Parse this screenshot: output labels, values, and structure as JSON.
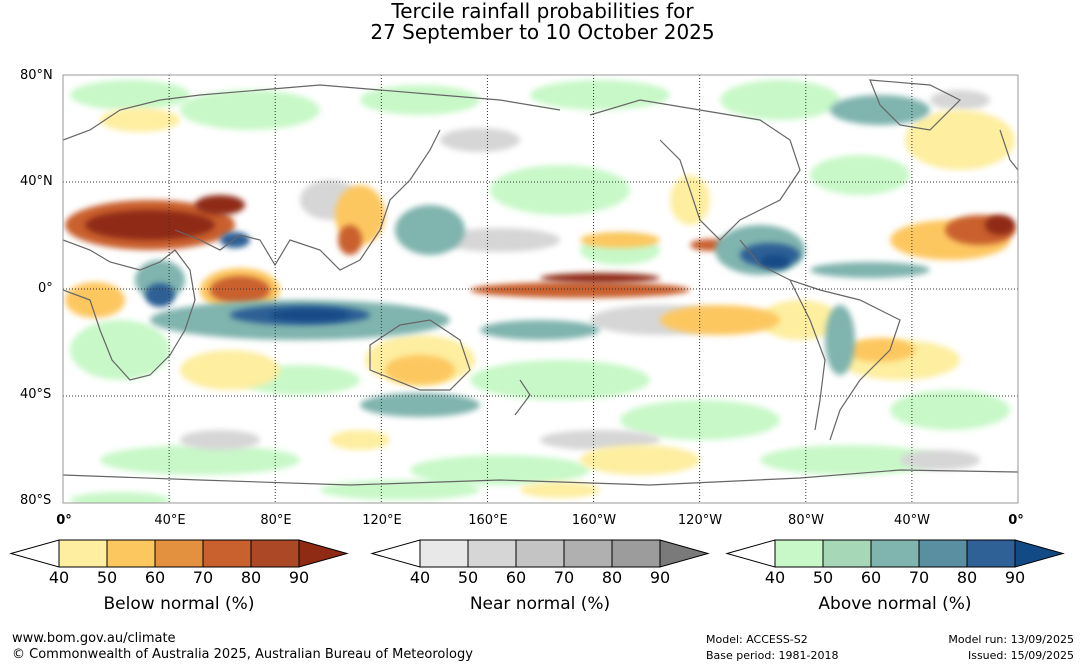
{
  "title": {
    "line1": "Tercile rainfall probabilities for",
    "line2": "27 September to 10 October 2025"
  },
  "map": {
    "lat_labels": [
      "80°N",
      "40°N",
      "0°",
      "40°S",
      "80°S"
    ],
    "lon_labels": [
      "0°",
      "40°E",
      "80°E",
      "120°E",
      "160°E",
      "160°W",
      "120°W",
      "80°W",
      "40°W",
      "0°"
    ]
  },
  "legends": [
    {
      "title": "Below normal (%)",
      "ticks": [
        "40",
        "50",
        "60",
        "70",
        "80",
        "90"
      ],
      "colors": [
        "#ffffff",
        "#fdeea0",
        "#fdc760",
        "#e3913f",
        "#c9612f",
        "#ad4826",
        "#8f2a14"
      ]
    },
    {
      "title": "Near normal (%)",
      "ticks": [
        "40",
        "50",
        "60",
        "70",
        "80",
        "90"
      ],
      "colors": [
        "#ffffff",
        "#e8e8e8",
        "#d6d6d6",
        "#c4c4c4",
        "#b0b0b0",
        "#9c9c9c",
        "#7a7a7a"
      ]
    },
    {
      "title": "Above normal (%)",
      "ticks": [
        "40",
        "50",
        "60",
        "70",
        "80",
        "90"
      ],
      "colors": [
        "#ffffff",
        "#c8f8c8",
        "#a6d8b8",
        "#80b4ae",
        "#5a8fa2",
        "#2f6096",
        "#124a86"
      ]
    }
  ],
  "footer": {
    "website": "www.bom.gov.au/climate",
    "copyright": "© Commonwealth of Australia 2025, Australian Bureau of Meteorology",
    "model": "Model: ACCESS-S2",
    "base_period": "Base period: 1981-2018",
    "model_run": "Model run: 13/09/2025",
    "issued": "Issued: 15/09/2025"
  }
}
